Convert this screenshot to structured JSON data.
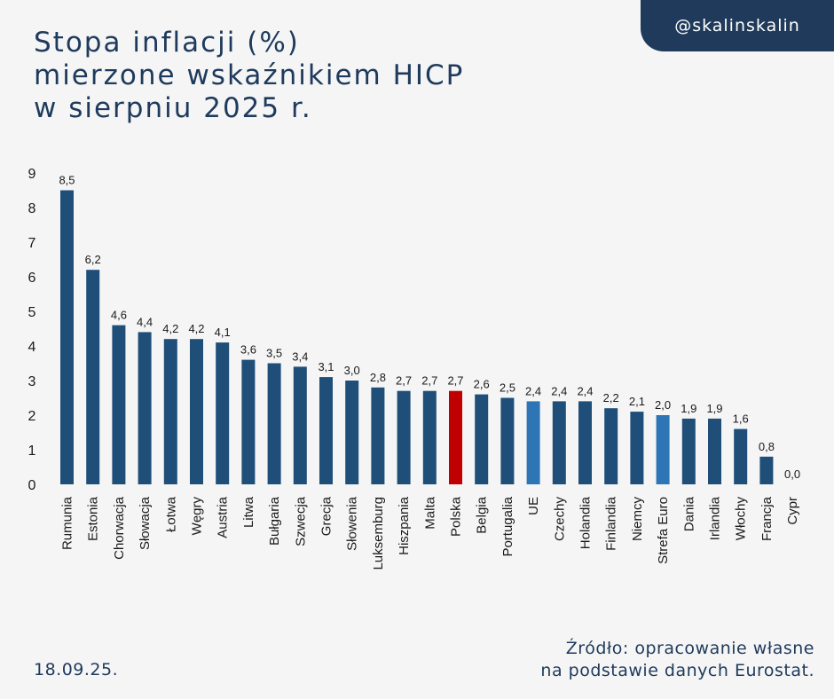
{
  "handle": "@skalinskalin",
  "title_lines": [
    "Stopa inflacji (%)",
    "mierzone wskaźnikiem HICP",
    "w sierpniu 2025 r."
  ],
  "footer": {
    "date": "18.09.25.",
    "source_lines": [
      "Źródło: opracowanie własne",
      "na podstawie danych Eurostat."
    ]
  },
  "colors": {
    "bar": "#1f4e79",
    "highlight_poland": "#c00000",
    "highlight_aggregate": "#2e75b6",
    "text": "#1e3a5c",
    "badge": "#1f3a5a"
  },
  "chart_data": {
    "type": "bar",
    "categories": [
      "Rumunia",
      "Estonia",
      "Chorwacja",
      "Słowacja",
      "Łotwa",
      "Węgry",
      "Austria",
      "Litwa",
      "Bułgaria",
      "Szwecja",
      "Grecja",
      "Słowenia",
      "Luksemburg",
      "Hiszpania",
      "Malta",
      "Polska",
      "Belgia",
      "Portugalia",
      "UE",
      "Czechy",
      "Holandia",
      "Finlandia",
      "Niemcy",
      "Strefa Euro",
      "Dania",
      "Irlandia",
      "Włochy",
      "Francja",
      "Cypr"
    ],
    "values": [
      8.5,
      6.2,
      4.6,
      4.4,
      4.2,
      4.2,
      4.1,
      3.6,
      3.5,
      3.4,
      3.1,
      3.0,
      2.8,
      2.7,
      2.7,
      2.7,
      2.6,
      2.5,
      2.4,
      2.4,
      2.4,
      2.2,
      2.1,
      2.0,
      1.9,
      1.9,
      1.6,
      0.8,
      0.0
    ],
    "value_labels": [
      "8,5",
      "6,2",
      "4,6",
      "4,4",
      "4,2",
      "4,2",
      "4,1",
      "3,6",
      "3,5",
      "3,4",
      "3,1",
      "3,0",
      "2,8",
      "2,7",
      "2,7",
      "2,7",
      "2,6",
      "2,5",
      "2,4",
      "2,4",
      "2,4",
      "2,2",
      "2,1",
      "2,0",
      "1,9",
      "1,9",
      "1,6",
      "0,8",
      "0,0"
    ],
    "highlight": {
      "Polska": "highlight_poland",
      "UE": "highlight_aggregate",
      "Strefa Euro": "highlight_aggregate"
    },
    "ylim": [
      0,
      9
    ],
    "yticks": [
      0,
      1,
      2,
      3,
      4,
      5,
      6,
      7,
      8,
      9
    ],
    "title": "",
    "xlabel": "",
    "ylabel": "",
    "grid": false,
    "legend": "none"
  }
}
